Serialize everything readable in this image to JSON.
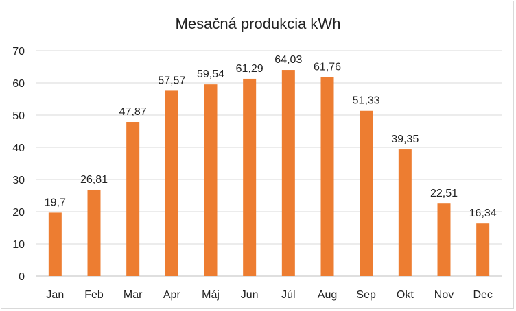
{
  "chart_data": {
    "type": "bar",
    "title": "Mesačná produkcia kWh",
    "categories": [
      "Jan",
      "Feb",
      "Mar",
      "Apr",
      "Máj",
      "Jun",
      "Júl",
      "Aug",
      "Sep",
      "Okt",
      "Nov",
      "Dec"
    ],
    "values": [
      19.7,
      26.81,
      47.87,
      57.57,
      59.54,
      61.29,
      64.03,
      61.76,
      51.33,
      39.35,
      22.51,
      16.34
    ],
    "value_labels": [
      "19,7",
      "26,81",
      "47,87",
      "57,57",
      "59,54",
      "61,29",
      "64,03",
      "61,76",
      "51,33",
      "39,35",
      "22,51",
      "16,34"
    ],
    "y_ticks": [
      "0",
      "10",
      "20",
      "30",
      "40",
      "50",
      "60",
      "70"
    ],
    "ylim": [
      0,
      70
    ],
    "grid": true,
    "legend": "none",
    "bar_color": "#ED7D31"
  }
}
